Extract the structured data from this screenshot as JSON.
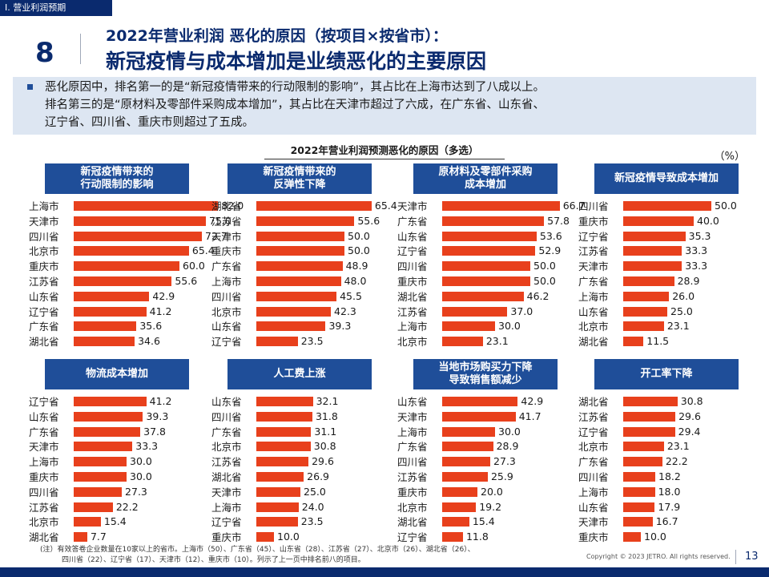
{
  "section_tag": "Ⅰ. 营业利润预期",
  "page_number": "8",
  "subtitle": "2022年营业利润  恶化的原因（按项目×按省市）：",
  "main_title": "新冠疫情与成本增加是业绩恶化的主要原因",
  "summary_lines": [
    "恶化原因中，排名第一的是“新冠疫情带来的行动限制的影响”，其占比在上海市达到了八成以上。",
    "排名第三的是“原材料及零部件采购成本增加”，其占比在天津市超过了六成，在广东省、山东省、",
    "辽宁省、四川省、重庆市则超过了五成。"
  ],
  "chart_title": "2022年营业利润预测恶化的原因（多选）",
  "unit": "（%）",
  "colors": {
    "bar": "#e8401c",
    "header": "#1f4e99",
    "navy": "#0a2a6e"
  },
  "chart_data": [
    {
      "type": "bar",
      "title": "新冠疫情带来的\n行动限制的影响",
      "categories": [
        "上海市",
        "天津市",
        "四川省",
        "北京市",
        "重庆市",
        "江苏省",
        "山东省",
        "辽宁省",
        "广东省",
        "湖北省"
      ],
      "values": [
        82.0,
        75.0,
        72.7,
        65.4,
        60.0,
        55.6,
        42.9,
        41.2,
        35.6,
        34.6
      ]
    },
    {
      "type": "bar",
      "title": "新冠疫情带来的\n反弹性下降",
      "categories": [
        "湖北省",
        "江苏省",
        "天津市",
        "重庆市",
        "广东省",
        "上海市",
        "四川省",
        "北京市",
        "山东省",
        "辽宁省"
      ],
      "values": [
        65.4,
        55.6,
        50.0,
        50.0,
        48.9,
        48.0,
        45.5,
        42.3,
        39.3,
        23.5
      ]
    },
    {
      "type": "bar",
      "title": "原材料及零部件采购\n成本增加",
      "categories": [
        "天津市",
        "广东省",
        "山东省",
        "辽宁省",
        "四川省",
        "重庆市",
        "湖北省",
        "江苏省",
        "上海市",
        "北京市"
      ],
      "values": [
        66.7,
        57.8,
        53.6,
        52.9,
        50.0,
        50.0,
        46.2,
        37.0,
        30.0,
        23.1
      ]
    },
    {
      "type": "bar",
      "title": "新冠疫情导致成本增加",
      "categories": [
        "四川省",
        "重庆市",
        "辽宁省",
        "江苏省",
        "天津市",
        "广东省",
        "上海市",
        "山东省",
        "北京市",
        "湖北省"
      ],
      "values": [
        50.0,
        40.0,
        35.3,
        33.3,
        33.3,
        28.9,
        26.0,
        25.0,
        23.1,
        11.5
      ]
    },
    {
      "type": "bar",
      "title": "物流成本增加",
      "categories": [
        "辽宁省",
        "山东省",
        "广东省",
        "天津市",
        "上海市",
        "重庆市",
        "四川省",
        "江苏省",
        "北京市",
        "湖北省"
      ],
      "values": [
        41.2,
        39.3,
        37.8,
        33.3,
        30.0,
        30.0,
        27.3,
        22.2,
        15.4,
        7.7
      ]
    },
    {
      "type": "bar",
      "title": "人工费上涨",
      "categories": [
        "山东省",
        "四川省",
        "广东省",
        "北京市",
        "江苏省",
        "湖北省",
        "天津市",
        "上海市",
        "辽宁省",
        "重庆市"
      ],
      "values": [
        32.1,
        31.8,
        31.1,
        30.8,
        29.6,
        26.9,
        25.0,
        24.0,
        23.5,
        10.0
      ]
    },
    {
      "type": "bar",
      "title": "当地市场购买力下降\n导致销售额减少",
      "categories": [
        "山东省",
        "天津市",
        "上海市",
        "广东省",
        "四川省",
        "江苏省",
        "重庆市",
        "北京市",
        "湖北省",
        "辽宁省"
      ],
      "values": [
        42.9,
        41.7,
        30.0,
        28.9,
        27.3,
        25.9,
        20.0,
        19.2,
        15.4,
        11.8
      ]
    },
    {
      "type": "bar",
      "title": "开工率下降",
      "categories": [
        "湖北省",
        "江苏省",
        "辽宁省",
        "北京市",
        "广东省",
        "四川省",
        "上海市",
        "山东省",
        "天津市",
        "重庆市"
      ],
      "values": [
        30.8,
        29.6,
        29.4,
        23.1,
        22.2,
        18.2,
        18.0,
        17.9,
        16.7,
        10.0
      ]
    }
  ],
  "footnote_lines": [
    "(注）有效答卷企业数量在10家以上的省市。上海市（50）、广东省（45）、山东省（28）、江苏省（27）、北京市（26）、湖北省（26）、",
    "　　　四川省（22）、辽宁省（17）、天津市（12）、重庆市（10）。列示了上一页中排名前八的项目。"
  ],
  "copyright": "Copyright © 2023 JETRO. All rights reserved.",
  "slide_number": "13"
}
